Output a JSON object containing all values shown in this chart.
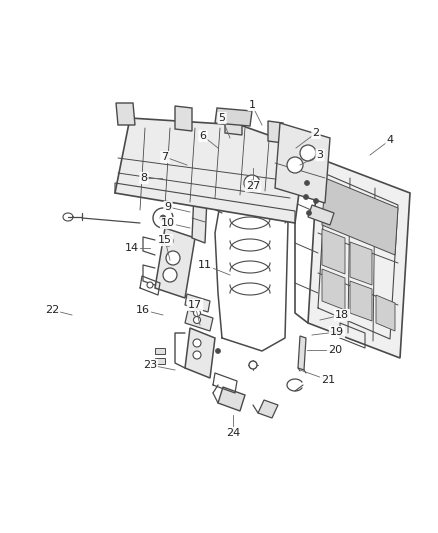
{
  "background_color": "#ffffff",
  "line_color": "#4a4a4a",
  "label_color": "#222222",
  "figsize": [
    4.38,
    5.33
  ],
  "dpi": 100
}
